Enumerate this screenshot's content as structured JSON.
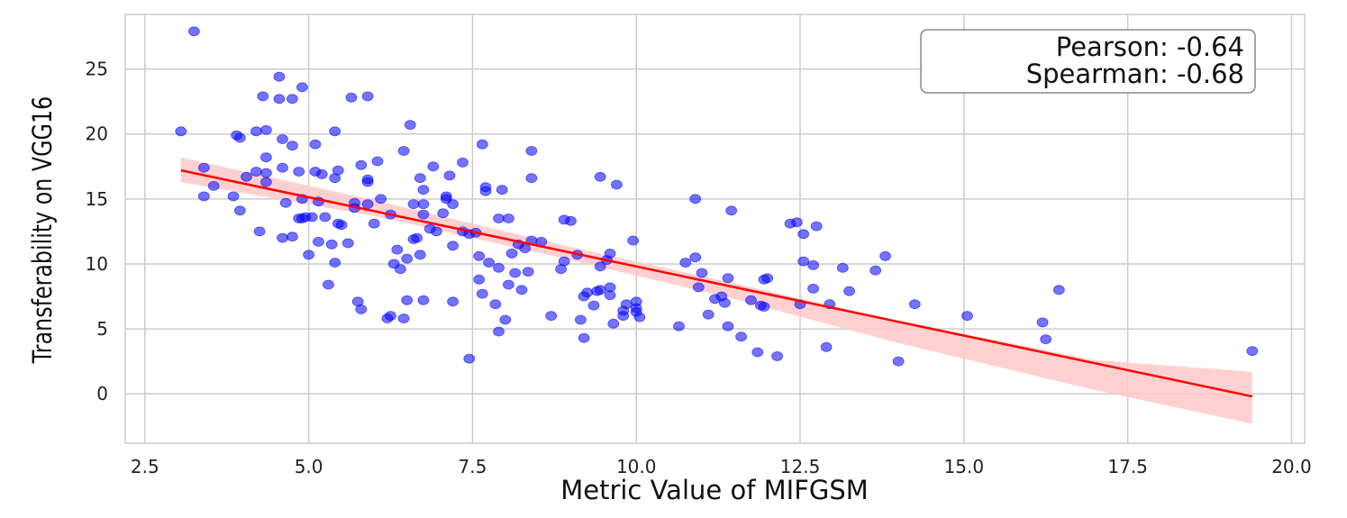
{
  "chart_data": {
    "type": "scatter",
    "title": "",
    "xlabel": "Metric Value of MIFGSM",
    "ylabel": "Transferability on VGG16",
    "xlim": [
      2.2,
      20.2
    ],
    "ylim": [
      -3.8,
      29.2
    ],
    "x_ticks": [
      2.5,
      5.0,
      7.5,
      10.0,
      12.5,
      15.0,
      17.5,
      20.0
    ],
    "x_tick_labels": [
      "2.5",
      "5.0",
      "7.5",
      "10.0",
      "12.5",
      "15.0",
      "17.5",
      "20.0"
    ],
    "y_ticks": [
      0,
      5,
      10,
      15,
      20,
      25
    ],
    "y_tick_labels": [
      "0",
      "5",
      "10",
      "15",
      "20",
      "25"
    ],
    "grid": true,
    "annotation": {
      "pearson": "Pearson: -0.64",
      "spearman": "Spearman: -0.68",
      "placement": "top-right"
    },
    "colors": {
      "points": "#0000ff",
      "fit_line": "#ff0000",
      "confidence_band": "#ffc8c8"
    },
    "fit": {
      "x_start": 3.05,
      "y_start": 17.2,
      "x_end": 19.4,
      "y_end": -0.2
    },
    "band_lower": [
      [
        3.05,
        16.3
      ],
      [
        6.0,
        13.7
      ],
      [
        9.0,
        10.3
      ],
      [
        11.5,
        7.3
      ],
      [
        14.0,
        3.9
      ],
      [
        17.0,
        0.3
      ],
      [
        19.4,
        -2.3
      ]
    ],
    "band_upper": [
      [
        3.05,
        18.2
      ],
      [
        6.0,
        14.9
      ],
      [
        9.0,
        11.3
      ],
      [
        11.5,
        8.5
      ],
      [
        14.0,
        5.6
      ],
      [
        17.0,
        2.6
      ],
      [
        19.4,
        1.7
      ]
    ],
    "series": [
      {
        "name": "samples",
        "points": [
          [
            3.05,
            20.2
          ],
          [
            3.25,
            27.9
          ],
          [
            3.4,
            17.4
          ],
          [
            3.4,
            15.2
          ],
          [
            3.55,
            16.0
          ],
          [
            3.85,
            15.2
          ],
          [
            3.9,
            19.9
          ],
          [
            3.95,
            14.1
          ],
          [
            3.95,
            19.7
          ],
          [
            4.05,
            16.7
          ],
          [
            4.2,
            17.1
          ],
          [
            4.2,
            20.2
          ],
          [
            4.25,
            12.5
          ],
          [
            4.3,
            22.9
          ],
          [
            4.35,
            20.3
          ],
          [
            4.35,
            18.2
          ],
          [
            4.35,
            17.0
          ],
          [
            4.35,
            16.3
          ],
          [
            4.55,
            24.4
          ],
          [
            4.55,
            22.7
          ],
          [
            4.6,
            17.4
          ],
          [
            4.6,
            19.6
          ],
          [
            4.6,
            12.0
          ],
          [
            4.65,
            14.7
          ],
          [
            4.75,
            22.7
          ],
          [
            4.75,
            19.1
          ],
          [
            4.75,
            12.1
          ],
          [
            4.85,
            13.5
          ],
          [
            4.85,
            17.1
          ],
          [
            4.9,
            13.5
          ],
          [
            4.9,
            15.0
          ],
          [
            4.9,
            23.6
          ],
          [
            4.95,
            13.6
          ],
          [
            5.0,
            10.7
          ],
          [
            5.05,
            13.6
          ],
          [
            5.1,
            19.2
          ],
          [
            5.1,
            17.1
          ],
          [
            5.15,
            11.7
          ],
          [
            5.15,
            14.8
          ],
          [
            5.2,
            16.9
          ],
          [
            5.25,
            13.6
          ],
          [
            5.3,
            8.4
          ],
          [
            5.35,
            11.5
          ],
          [
            5.4,
            10.1
          ],
          [
            5.4,
            20.2
          ],
          [
            5.4,
            16.6
          ],
          [
            5.45,
            17.2
          ],
          [
            5.45,
            13.1
          ],
          [
            5.5,
            13.0
          ],
          [
            5.6,
            11.6
          ],
          [
            5.65,
            22.8
          ],
          [
            5.7,
            14.3
          ],
          [
            5.7,
            14.7
          ],
          [
            5.75,
            7.1
          ],
          [
            5.8,
            6.5
          ],
          [
            5.8,
            17.6
          ],
          [
            5.9,
            14.6
          ],
          [
            5.9,
            16.3
          ],
          [
            5.9,
            16.5
          ],
          [
            5.9,
            22.9
          ],
          [
            6.0,
            13.1
          ],
          [
            6.05,
            17.9
          ],
          [
            6.1,
            15.0
          ],
          [
            6.2,
            5.8
          ],
          [
            6.25,
            13.8
          ],
          [
            6.25,
            6.0
          ],
          [
            6.3,
            10.0
          ],
          [
            6.35,
            11.1
          ],
          [
            6.4,
            9.6
          ],
          [
            6.45,
            18.7
          ],
          [
            6.45,
            5.8
          ],
          [
            6.5,
            10.4
          ],
          [
            6.5,
            7.2
          ],
          [
            6.55,
            20.7
          ],
          [
            6.6,
            11.9
          ],
          [
            6.6,
            14.6
          ],
          [
            6.65,
            12.0
          ],
          [
            6.7,
            16.6
          ],
          [
            6.7,
            10.7
          ],
          [
            6.75,
            13.8
          ],
          [
            6.75,
            14.6
          ],
          [
            6.75,
            15.7
          ],
          [
            6.75,
            7.2
          ],
          [
            6.85,
            12.7
          ],
          [
            6.9,
            17.5
          ],
          [
            6.95,
            12.5
          ],
          [
            7.05,
            13.9
          ],
          [
            7.1,
            15.2
          ],
          [
            7.1,
            15.0
          ],
          [
            7.15,
            16.8
          ],
          [
            7.2,
            14.6
          ],
          [
            7.2,
            11.4
          ],
          [
            7.2,
            7.1
          ],
          [
            7.35,
            17.8
          ],
          [
            7.35,
            12.5
          ],
          [
            7.45,
            12.3
          ],
          [
            7.45,
            2.7
          ],
          [
            7.55,
            12.4
          ],
          [
            7.6,
            10.6
          ],
          [
            7.6,
            8.8
          ],
          [
            7.65,
            19.2
          ],
          [
            7.65,
            7.7
          ],
          [
            7.7,
            15.6
          ],
          [
            7.7,
            15.9
          ],
          [
            7.75,
            10.1
          ],
          [
            7.85,
            6.9
          ],
          [
            7.9,
            13.5
          ],
          [
            7.9,
            9.7
          ],
          [
            7.9,
            4.8
          ],
          [
            7.95,
            15.7
          ],
          [
            8.0,
            5.7
          ],
          [
            8.05,
            13.5
          ],
          [
            8.05,
            8.4
          ],
          [
            8.1,
            10.8
          ],
          [
            8.15,
            9.3
          ],
          [
            8.2,
            11.5
          ],
          [
            8.25,
            8.0
          ],
          [
            8.3,
            11.2
          ],
          [
            8.35,
            9.4
          ],
          [
            8.4,
            18.7
          ],
          [
            8.4,
            16.6
          ],
          [
            8.4,
            11.8
          ],
          [
            8.55,
            11.7
          ],
          [
            8.7,
            6.0
          ],
          [
            8.85,
            9.6
          ],
          [
            8.9,
            10.2
          ],
          [
            8.9,
            13.4
          ],
          [
            9.0,
            13.3
          ],
          [
            9.1,
            10.7
          ],
          [
            9.15,
            5.7
          ],
          [
            9.2,
            4.3
          ],
          [
            9.2,
            7.5
          ],
          [
            9.25,
            7.8
          ],
          [
            9.35,
            6.8
          ],
          [
            9.4,
            7.9
          ],
          [
            9.45,
            8.0
          ],
          [
            9.45,
            9.8
          ],
          [
            9.45,
            16.7
          ],
          [
            9.55,
            10.3
          ],
          [
            9.6,
            10.8
          ],
          [
            9.6,
            8.2
          ],
          [
            9.6,
            7.6
          ],
          [
            9.65,
            5.4
          ],
          [
            9.7,
            16.1
          ],
          [
            9.8,
            6.4
          ],
          [
            9.8,
            6.0
          ],
          [
            9.85,
            6.9
          ],
          [
            9.95,
            11.8
          ],
          [
            10.0,
            7.1
          ],
          [
            10.0,
            6.3
          ],
          [
            10.0,
            6.6
          ],
          [
            10.05,
            5.9
          ],
          [
            10.65,
            5.2
          ],
          [
            10.75,
            10.1
          ],
          [
            10.9,
            15.0
          ],
          [
            10.9,
            10.5
          ],
          [
            10.95,
            8.2
          ],
          [
            11.0,
            9.3
          ],
          [
            11.1,
            6.1
          ],
          [
            11.2,
            7.3
          ],
          [
            11.3,
            7.5
          ],
          [
            11.35,
            7.0
          ],
          [
            11.4,
            5.2
          ],
          [
            11.4,
            8.9
          ],
          [
            11.45,
            14.1
          ],
          [
            11.6,
            4.4
          ],
          [
            11.75,
            7.2
          ],
          [
            11.85,
            3.2
          ],
          [
            11.9,
            6.8
          ],
          [
            11.95,
            6.7
          ],
          [
            11.95,
            8.8
          ],
          [
            12.0,
            8.9
          ],
          [
            12.15,
            2.9
          ],
          [
            12.35,
            13.1
          ],
          [
            12.45,
            13.2
          ],
          [
            12.5,
            6.9
          ],
          [
            12.55,
            10.2
          ],
          [
            12.55,
            12.3
          ],
          [
            12.7,
            8.1
          ],
          [
            12.7,
            9.9
          ],
          [
            12.75,
            12.9
          ],
          [
            12.9,
            3.6
          ],
          [
            12.95,
            6.9
          ],
          [
            13.15,
            9.7
          ],
          [
            13.25,
            7.9
          ],
          [
            13.65,
            9.5
          ],
          [
            13.8,
            10.6
          ],
          [
            14.0,
            2.5
          ],
          [
            14.25,
            6.9
          ],
          [
            15.05,
            6.0
          ],
          [
            16.2,
            5.5
          ],
          [
            16.25,
            4.2
          ],
          [
            16.45,
            8.0
          ],
          [
            19.4,
            3.3
          ]
        ]
      }
    ]
  }
}
